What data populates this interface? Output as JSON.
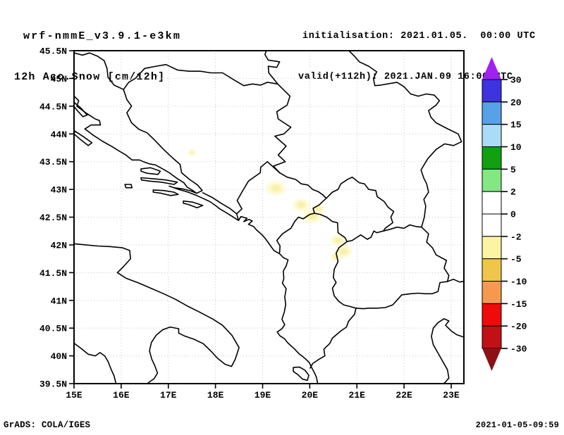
{
  "header": {
    "title_line1": "wrf-nmmE_v3.9.1-e3km",
    "title_line2": "12h Acc.Snow [cm/12h]",
    "init_line": "initialisation: 2021.01.05.  00:00 UTC",
    "valid_line": "valid(+112h): 2021.JAN.09 16:00 UTC"
  },
  "footer": {
    "left": "GrADS: COLA/IGES",
    "right": "2021-01-05-09:59"
  },
  "chart_data": {
    "type": "heatmap",
    "title": "wrf-nmmE_v3.9.1-e3km",
    "subtitle": "12h Acc.Snow [cm/12h]",
    "units": "cm/12h",
    "xlabel": "",
    "ylabel": "",
    "grid": true,
    "grid_style": "dotted, 1 deg lon x 0.5 deg lat",
    "legend_position": "right",
    "xlim": [
      15,
      23.27
    ],
    "ylim": [
      39.5,
      45.5
    ],
    "x_ticks": [
      "15E",
      "16E",
      "17E",
      "18E",
      "19E",
      "20E",
      "21E",
      "22E",
      "23E"
    ],
    "y_ticks": [
      "45.5N",
      "45N",
      "44.5N",
      "44N",
      "43.5N",
      "43N",
      "42.5N",
      "42N",
      "41.5N",
      "41N",
      "40.5N",
      "40N",
      "39.5N"
    ],
    "colorbar": {
      "labels": [
        "30",
        "20",
        "15",
        "10",
        "5",
        "2",
        "0",
        "-2",
        "-5",
        "-10",
        "-15",
        "-20",
        "-30"
      ],
      "segment_colors_top_to_bottom": [
        "#3d33df",
        "#55a2e8",
        "#abdcf7",
        "#10a010",
        "#82e882",
        "#ffffff",
        "#ffffff",
        "#fcf4a3",
        "#f0c64a",
        "#f59a4d",
        "#f00a0a",
        "#c11116"
      ],
      "above_max_color": "#a021f0",
      "below_min_color": "#8c1115"
    },
    "snow_patches_note": "faint pale-yellow accumulation spots over Dinaric/Prokletije/Sar mountains",
    "patch_outer_color": "#fffbd6",
    "patch_core_color": "#f6eda0",
    "snow_patches": [
      {
        "lon": 17.5,
        "lat": 43.66,
        "r": 4
      },
      {
        "lon": 19.28,
        "lat": 43.02,
        "r": 9
      },
      {
        "lon": 19.82,
        "lat": 42.72,
        "r": 8
      },
      {
        "lon": 20.05,
        "lat": 42.52,
        "r": 9
      },
      {
        "lon": 20.18,
        "lat": 42.65,
        "r": 6
      },
      {
        "lon": 20.6,
        "lat": 42.08,
        "r": 7
      },
      {
        "lon": 20.72,
        "lat": 41.88,
        "r": 8
      },
      {
        "lon": 20.55,
        "lat": 41.78,
        "r": 5
      }
    ],
    "frame_color": "#000000",
    "gridline_color": "#c6c6c6"
  }
}
